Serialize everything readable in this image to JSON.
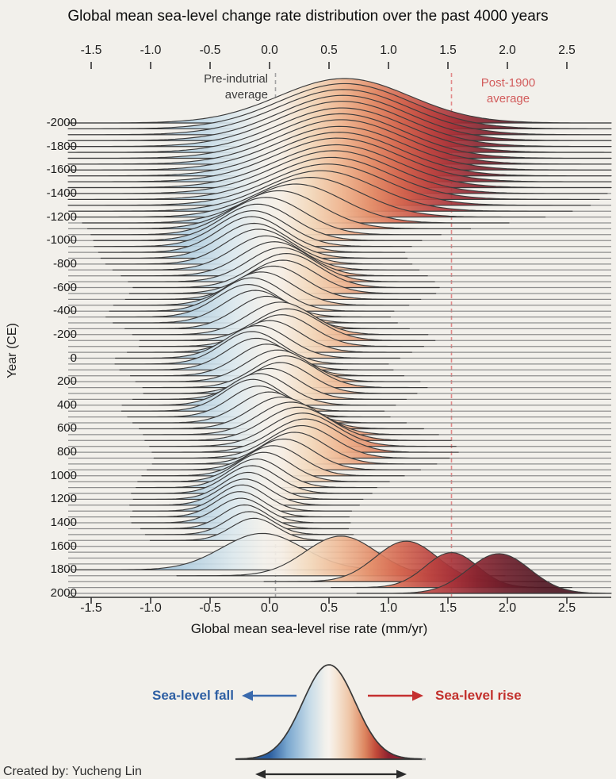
{
  "title": "Global mean sea-level change rate distribution over the past 4000 years",
  "credit": "Created by: Yucheng Lin",
  "chart_data": {
    "type": "area",
    "subtype": "ridgeline-density",
    "title": "Global mean sea-level change rate distribution over the past 4000 years",
    "xlabel": "Global mean sea-level rise rate (mm/yr)",
    "ylabel": "Year (CE)",
    "xlim": [
      -1.69,
      2.87
    ],
    "x_tick_values": [
      -1.5,
      -1.0,
      -0.5,
      0.0,
      0.5,
      1.0,
      1.5,
      2.0,
      2.5
    ],
    "x_tick_labels": [
      "-1.5",
      "-1.0",
      "-0.5",
      "0.0",
      "0.5",
      "1.0",
      "1.5",
      "2.0",
      "2.5"
    ],
    "y_tick_values": [
      -2000,
      -1800,
      -1600,
      -1400,
      -1200,
      -1000,
      -800,
      -600,
      -400,
      -200,
      0,
      200,
      400,
      600,
      800,
      1000,
      1200,
      1400,
      1600,
      1800,
      2000
    ],
    "y_tick_labels": [
      "-2000",
      "-1800",
      "-1600",
      "-1400",
      "-1200",
      "-1000",
      "-800",
      "-600",
      "-400",
      "-200",
      "0",
      "200",
      "400",
      "600",
      "800",
      "1000",
      "1200",
      "1400",
      "1600",
      "1800",
      "2000"
    ],
    "grid": "horizontal-baselines",
    "annotations": {
      "pre_industrial": {
        "line1": "Pre-indutrial",
        "line2": "average",
        "value_mm_per_yr": 0.05,
        "line_color": "#a3a3a3",
        "text_color": "#3b3b3b"
      },
      "post_1900": {
        "line1": "Post-1900",
        "line2": "average",
        "value_mm_per_yr": 1.53,
        "line_color": "#e28989",
        "text_color": "#d25c5c"
      }
    },
    "legend": {
      "fall_label": "Sea-level fall",
      "rise_label": "Sea-level rise",
      "fall_color": "#2e5fa3",
      "rise_color": "#c2302c",
      "curve_note": "gaussian colored blue (fall) to red (rise)"
    },
    "ridges_format": [
      "year_CE",
      "peak_mm_per_yr",
      "sigma_mm_per_yr",
      "amplitude_px"
    ],
    "ridges": [
      [
        -2000,
        0.63,
        0.55,
        56
      ],
      [
        -1950,
        0.63,
        0.55,
        57
      ],
      [
        -1900,
        0.62,
        0.55,
        57
      ],
      [
        -1850,
        0.62,
        0.54,
        57
      ],
      [
        -1800,
        0.61,
        0.54,
        57
      ],
      [
        -1750,
        0.61,
        0.54,
        56
      ],
      [
        -1700,
        0.6,
        0.53,
        56
      ],
      [
        -1650,
        0.6,
        0.53,
        56
      ],
      [
        -1600,
        0.59,
        0.53,
        55
      ],
      [
        -1550,
        0.58,
        0.52,
        55
      ],
      [
        -1500,
        0.57,
        0.52,
        55
      ],
      [
        -1450,
        0.56,
        0.51,
        54
      ],
      [
        -1400,
        0.54,
        0.5,
        54
      ],
      [
        -1350,
        0.52,
        0.49,
        53
      ],
      [
        -1300,
        0.49,
        0.48,
        52
      ],
      [
        -1250,
        0.43,
        0.46,
        51
      ],
      [
        -1200,
        0.34,
        0.43,
        50
      ],
      [
        -1150,
        0.22,
        0.39,
        49
      ],
      [
        -1100,
        0.08,
        0.35,
        48
      ],
      [
        -1050,
        -0.03,
        0.32,
        47
      ],
      [
        -1000,
        -0.1,
        0.3,
        46
      ],
      [
        -950,
        -0.14,
        0.29,
        45
      ],
      [
        -900,
        -0.15,
        0.28,
        45
      ],
      [
        -850,
        -0.13,
        0.28,
        44
      ],
      [
        -800,
        -0.09,
        0.28,
        44
      ],
      [
        -750,
        -0.03,
        0.28,
        43
      ],
      [
        -700,
        0.04,
        0.28,
        43
      ],
      [
        -650,
        0.1,
        0.28,
        43
      ],
      [
        -600,
        0.14,
        0.28,
        43
      ],
      [
        -550,
        0.11,
        0.28,
        42
      ],
      [
        -500,
        0.03,
        0.27,
        42
      ],
      [
        -450,
        -0.07,
        0.27,
        42
      ],
      [
        -400,
        -0.15,
        0.26,
        42
      ],
      [
        -350,
        -0.18,
        0.26,
        41
      ],
      [
        -300,
        -0.12,
        0.26,
        41
      ],
      [
        -250,
        -0.02,
        0.26,
        41
      ],
      [
        -200,
        0.09,
        0.27,
        41
      ],
      [
        -150,
        0.15,
        0.27,
        40
      ],
      [
        -100,
        0.1,
        0.26,
        40
      ],
      [
        -50,
        0.0,
        0.26,
        40
      ],
      [
        0,
        -0.1,
        0.26,
        41
      ],
      [
        50,
        -0.15,
        0.25,
        41
      ],
      [
        100,
        -0.11,
        0.25,
        40
      ],
      [
        150,
        -0.02,
        0.25,
        40
      ],
      [
        200,
        0.07,
        0.26,
        40
      ],
      [
        250,
        0.13,
        0.26,
        40
      ],
      [
        300,
        0.09,
        0.25,
        39
      ],
      [
        350,
        0.0,
        0.25,
        39
      ],
      [
        400,
        -0.09,
        0.25,
        40
      ],
      [
        450,
        -0.14,
        0.24,
        40
      ],
      [
        500,
        -0.09,
        0.24,
        39
      ],
      [
        550,
        0.0,
        0.25,
        39
      ],
      [
        600,
        0.1,
        0.26,
        40
      ],
      [
        650,
        0.18,
        0.27,
        41
      ],
      [
        700,
        0.24,
        0.28,
        42
      ],
      [
        750,
        0.28,
        0.28,
        42
      ],
      [
        800,
        0.3,
        0.28,
        42
      ],
      [
        850,
        0.27,
        0.27,
        41
      ],
      [
        900,
        0.21,
        0.26,
        40
      ],
      [
        950,
        0.12,
        0.25,
        39
      ],
      [
        1000,
        0.03,
        0.24,
        38
      ],
      [
        1050,
        -0.05,
        0.23,
        37
      ],
      [
        1100,
        -0.11,
        0.22,
        36
      ],
      [
        1150,
        -0.15,
        0.22,
        35
      ],
      [
        1200,
        -0.18,
        0.21,
        34
      ],
      [
        1250,
        -0.21,
        0.21,
        33
      ],
      [
        1300,
        -0.23,
        0.2,
        33
      ],
      [
        1350,
        -0.25,
        0.2,
        32
      ],
      [
        1400,
        -0.24,
        0.2,
        31
      ],
      [
        1450,
        -0.21,
        0.19,
        30
      ],
      [
        1500,
        -0.17,
        0.19,
        29
      ],
      [
        1550,
        -0.13,
        0.19,
        28
      ],
      [
        1600,
        0,
        0.2,
        0
      ],
      [
        1650,
        0,
        0.2,
        0
      ],
      [
        1700,
        0,
        0.2,
        0
      ],
      [
        1750,
        0,
        0.2,
        0
      ],
      [
        1800,
        -0.06,
        0.34,
        46
      ],
      [
        1850,
        0.6,
        0.3,
        50
      ],
      [
        1900,
        1.15,
        0.26,
        51
      ],
      [
        1950,
        1.53,
        0.22,
        44
      ],
      [
        2000,
        1.93,
        0.26,
        50
      ]
    ],
    "color_scale": [
      {
        "v": -1.69,
        "c": "#5f93c0"
      },
      {
        "v": -1.1,
        "c": "#8fb8d6"
      },
      {
        "v": -0.6,
        "c": "#bcd5e4"
      },
      {
        "v": -0.3,
        "c": "#dde9ee"
      },
      {
        "v": -0.05,
        "c": "#f3f1ec"
      },
      {
        "v": 0.1,
        "c": "#f6efe6"
      },
      {
        "v": 0.35,
        "c": "#f3d9bd"
      },
      {
        "v": 0.6,
        "c": "#efb894"
      },
      {
        "v": 0.85,
        "c": "#e4906c"
      },
      {
        "v": 1.1,
        "c": "#d4664f"
      },
      {
        "v": 1.35,
        "c": "#bc4440"
      },
      {
        "v": 1.55,
        "c": "#a53138"
      },
      {
        "v": 1.75,
        "c": "#88242f"
      },
      {
        "v": 2.0,
        "c": "#691b28"
      },
      {
        "v": 2.3,
        "c": "#4f1420"
      },
      {
        "v": 2.87,
        "c": "#390e19"
      }
    ],
    "style": {
      "background": "#f2f0eb",
      "baseline_color": "#8f8f8f",
      "curve_stroke": "#3c3c3c",
      "axis_color": "#333333"
    }
  }
}
